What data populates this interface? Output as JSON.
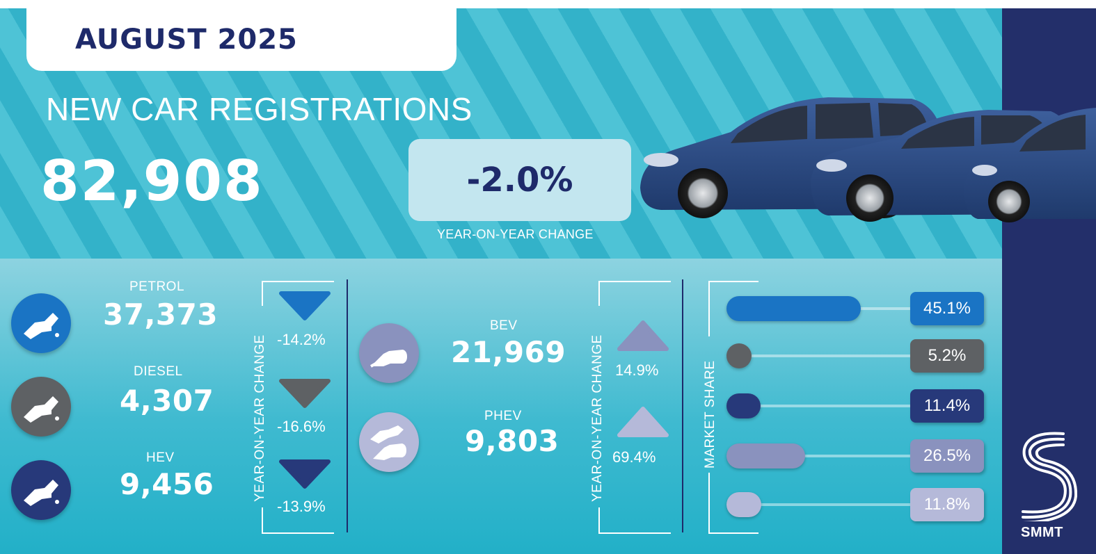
{
  "header": {
    "date": "AUGUST 2025",
    "title": "NEW CAR REGISTRATIONS",
    "total": "82,908",
    "yoy_change": "-2.0%",
    "yoy_caption": "YEAR-ON-YEAR CHANGE"
  },
  "fuels_left": [
    {
      "label": "PETROL",
      "value": "37,373",
      "change": "-14.2%",
      "color": "#1a74c4",
      "direction": "down"
    },
    {
      "label": "DIESEL",
      "value": "4,307",
      "change": "-16.6%",
      "color": "#5e6164",
      "direction": "down"
    },
    {
      "label": "HEV",
      "value": "9,456",
      "change": "-13.9%",
      "color": "#27397a",
      "direction": "down"
    }
  ],
  "fuels_right": [
    {
      "label": "BEV",
      "value": "21,969",
      "change": "14.9%",
      "color": "#8a92be",
      "direction": "up"
    },
    {
      "label": "PHEV",
      "value": "9,803",
      "change": "69.4%",
      "color": "#b5b9d9",
      "direction": "up"
    }
  ],
  "yoy_axis_label": "YEAR-ON-YEAR CHANGE",
  "market_share": {
    "label": "MARKET SHARE",
    "items": [
      {
        "fuel": "PETROL",
        "share": 45.1,
        "text": "45.1%",
        "color": "#1a74c4"
      },
      {
        "fuel": "DIESEL",
        "share": 5.2,
        "text": "5.2%",
        "color": "#5e6164"
      },
      {
        "fuel": "HEV",
        "share": 11.4,
        "text": "11.4%",
        "color": "#27397a"
      },
      {
        "fuel": "BEV",
        "share": 26.5,
        "text": "26.5%",
        "color": "#8a92be"
      },
      {
        "fuel": "PHEV",
        "share": 11.8,
        "text": "11.8%",
        "color": "#b5b9d9"
      }
    ]
  },
  "brand": {
    "name": "SMMT"
  },
  "colors": {
    "navy": "#1e2a6a",
    "sidebar": "#232f6a",
    "teal": "#4ec3d6"
  }
}
